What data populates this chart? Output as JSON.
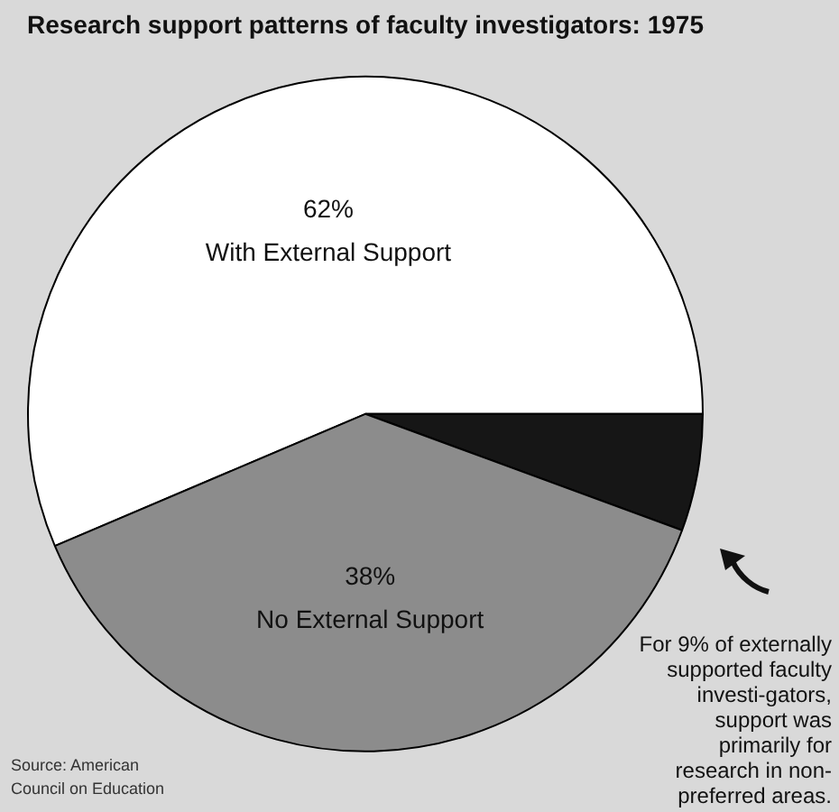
{
  "chart_data": {
    "type": "pie",
    "title": "Research support patterns of faculty investigators: 1975",
    "categories": [
      "With External Support",
      null,
      "No External Support"
    ],
    "values": [
      56.4,
      5.6,
      38
    ],
    "colors": [
      "#ffffff",
      "#161616",
      "#8c8c8c"
    ],
    "legend": false,
    "annotations": [
      {
        "text": "62%",
        "x": "With External Support"
      },
      {
        "text": "38%",
        "x": "No External Support"
      },
      "For 9% of externally supported faculty investi-gators, support was primarily for research in non-preferred areas.",
      "Source: American Council on Education"
    ]
  }
}
